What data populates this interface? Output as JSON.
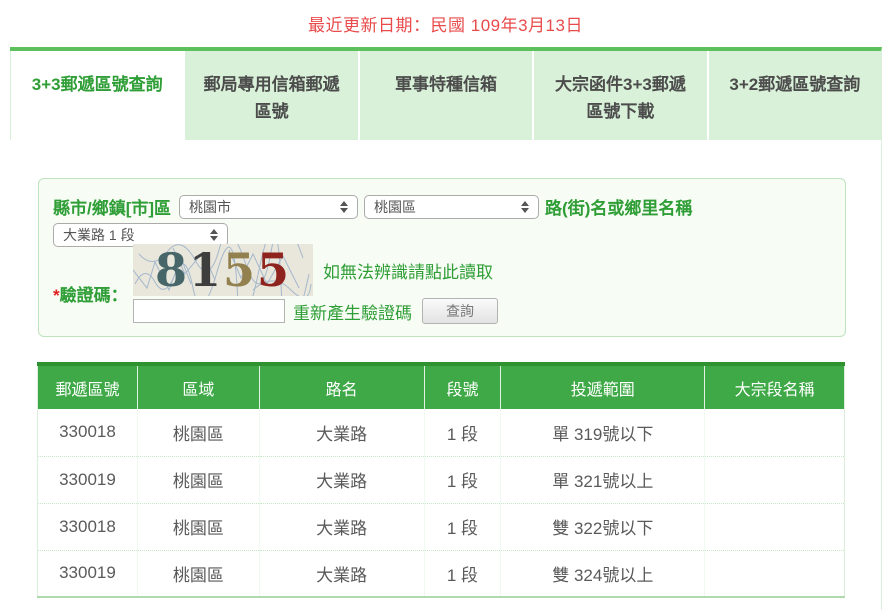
{
  "page": {
    "updated_date": "最近更新日期：民國 109年3月13日"
  },
  "colors": {
    "accent_green": "#2f9e36",
    "table_header_green": "#3fa947",
    "tab_bg_green": "#d9f1d9",
    "divider_green": "#5cc05c",
    "form_bg": "#f7fcf5",
    "date_red": "#e94b4b"
  },
  "tabs": [
    {
      "id": "3plus3-query",
      "label": "3+3郵遞區號查詢",
      "active": true
    },
    {
      "id": "pobox-zip",
      "label": "郵局專用信箱郵遞區號",
      "active": false
    },
    {
      "id": "military-box",
      "label": "軍事特種信箱",
      "active": false
    },
    {
      "id": "bulk-mail-download",
      "label": "大宗函件3+3郵遞區號下載",
      "active": false
    },
    {
      "id": "3plus2-query",
      "label": "3+2郵遞區號查詢",
      "active": false
    }
  ],
  "form": {
    "county_label": "縣市/鄉鎮[市]區",
    "county_value": "桃園市",
    "district_value": "桃園區",
    "road_label": "路(街)名或鄉里名稱",
    "road_value": "大業路 1 段",
    "captcha": {
      "star": "*",
      "label": "驗證碼：",
      "digits": [
        {
          "char": "8",
          "color": "#47666a"
        },
        {
          "char": "1",
          "color": "#3e3e3e"
        },
        {
          "char": "5",
          "color": "#92804e"
        },
        {
          "char": "5",
          "color": "#8e241d"
        }
      ],
      "hint": "如無法辨識請點此讀取",
      "input_value": "",
      "regenerate_label": "重新產生驗證碼"
    },
    "search_button": "查詢"
  },
  "table": {
    "headers": [
      "郵遞區號",
      "區域",
      "路名",
      "段號",
      "投遞範圍",
      "大宗段名稱"
    ],
    "rows": [
      [
        "330018",
        "桃園區",
        "大業路",
        "1 段",
        "單 319號以下",
        ""
      ],
      [
        "330019",
        "桃園區",
        "大業路",
        "1 段",
        "單 321號以上",
        ""
      ],
      [
        "330018",
        "桃園區",
        "大業路",
        "1 段",
        "雙 322號以下",
        ""
      ],
      [
        "330019",
        "桃園區",
        "大業路",
        "1 段",
        "雙 324號以上",
        ""
      ]
    ]
  }
}
